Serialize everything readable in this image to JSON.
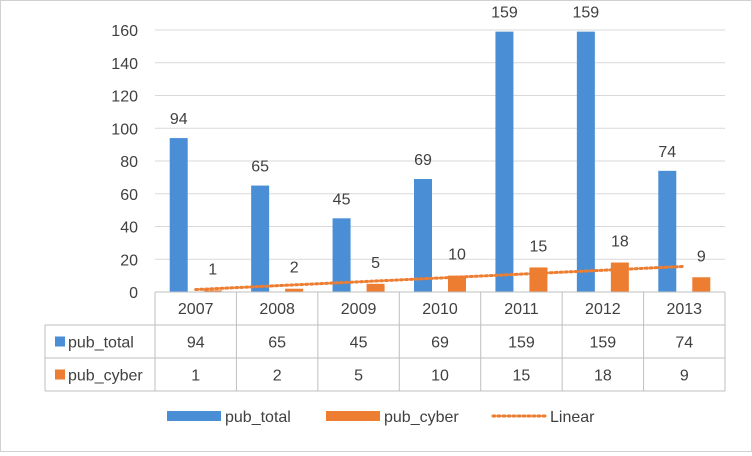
{
  "chart_data": {
    "type": "bar",
    "categories": [
      "2007",
      "2008",
      "2009",
      "2010",
      "2011",
      "2012",
      "2013"
    ],
    "series": [
      {
        "name": "pub_total",
        "values": [
          94,
          65,
          45,
          69,
          159,
          159,
          74
        ],
        "color": "#4a8fd6"
      },
      {
        "name": "pub_cyber",
        "values": [
          1,
          2,
          5,
          10,
          15,
          18,
          9
        ],
        "color": "#ed7d31"
      }
    ],
    "trendline": {
      "name": "Linear",
      "series": "pub_cyber",
      "color": "#ed7d31"
    },
    "ylim": [
      0,
      160
    ],
    "yticks": [
      0,
      20,
      40,
      60,
      80,
      100,
      120,
      140,
      160
    ],
    "grid": true,
    "data_table": true,
    "legend_position": "bottom"
  }
}
